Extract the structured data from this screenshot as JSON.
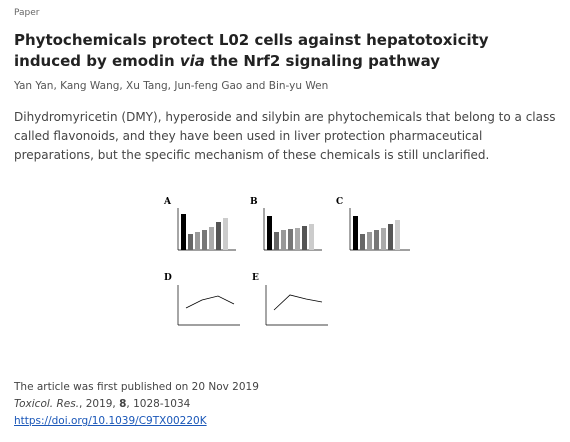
{
  "header": {
    "label": "Paper"
  },
  "title": {
    "parts": [
      "Phytochemicals protect L02 cells against hepatotoxicity induced by emodin ",
      "via",
      " the Nrf2 signaling pathway"
    ]
  },
  "authors": "Yan Yan, Kang Wang, Xu Tang, Jun-feng Gao and Bin-yu Wen",
  "abstract": "Dihydromyricetin (DMY), hyperoside and silybin are phytochemicals that belong to a class called flavonoids, and they have been used in liver protection pharmaceutical preparations, but the specific mechanism of these chemicals is still unclarified.",
  "figure": {
    "panels": [
      "A",
      "B",
      "C",
      "D",
      "E"
    ]
  },
  "footer": {
    "published": "The article was first published on 20 Nov 2019",
    "citation": {
      "journal": "Toxicol. Res.",
      "year": ", 2019, ",
      "volume": "8",
      "pages": ", 1028-1034"
    },
    "doi": "https://doi.org/10.1039/C9TX00220K"
  }
}
